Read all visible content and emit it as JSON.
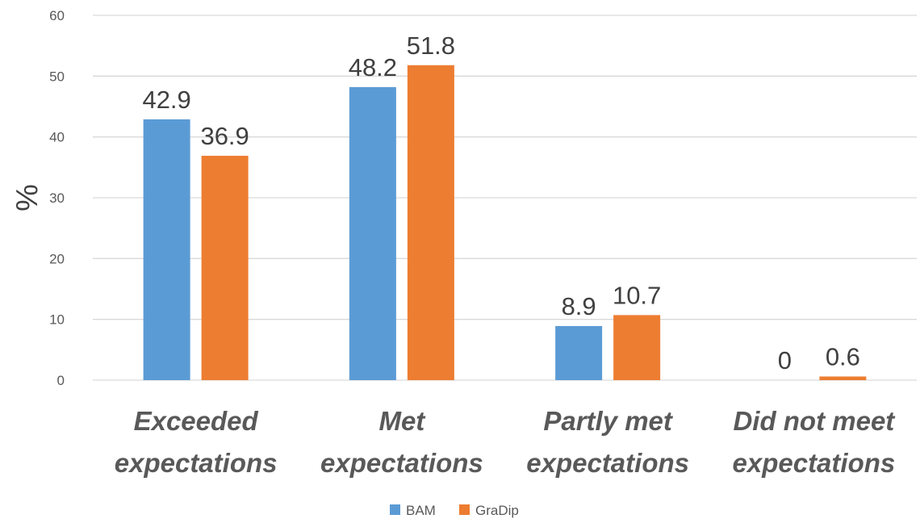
{
  "chart_data": {
    "type": "bar",
    "title": "",
    "xlabel": "",
    "ylabel": "%",
    "ylim": [
      0,
      60
    ],
    "yticks": [
      0,
      10,
      20,
      30,
      40,
      50,
      60
    ],
    "grid": true,
    "legend_position": "bottom",
    "categories": [
      [
        "Exceeded",
        "expectations"
      ],
      [
        "Met",
        "expectations"
      ],
      [
        "Partly met",
        "expectations"
      ],
      [
        "Did not meet",
        "expectations"
      ]
    ],
    "series": [
      {
        "name": "BAM",
        "color": "#5B9BD5",
        "values": [
          42.9,
          48.2,
          8.9,
          0
        ]
      },
      {
        "name": "GraDip",
        "color": "#ED7D31",
        "values": [
          36.9,
          51.8,
          10.7,
          0.6
        ]
      }
    ]
  }
}
